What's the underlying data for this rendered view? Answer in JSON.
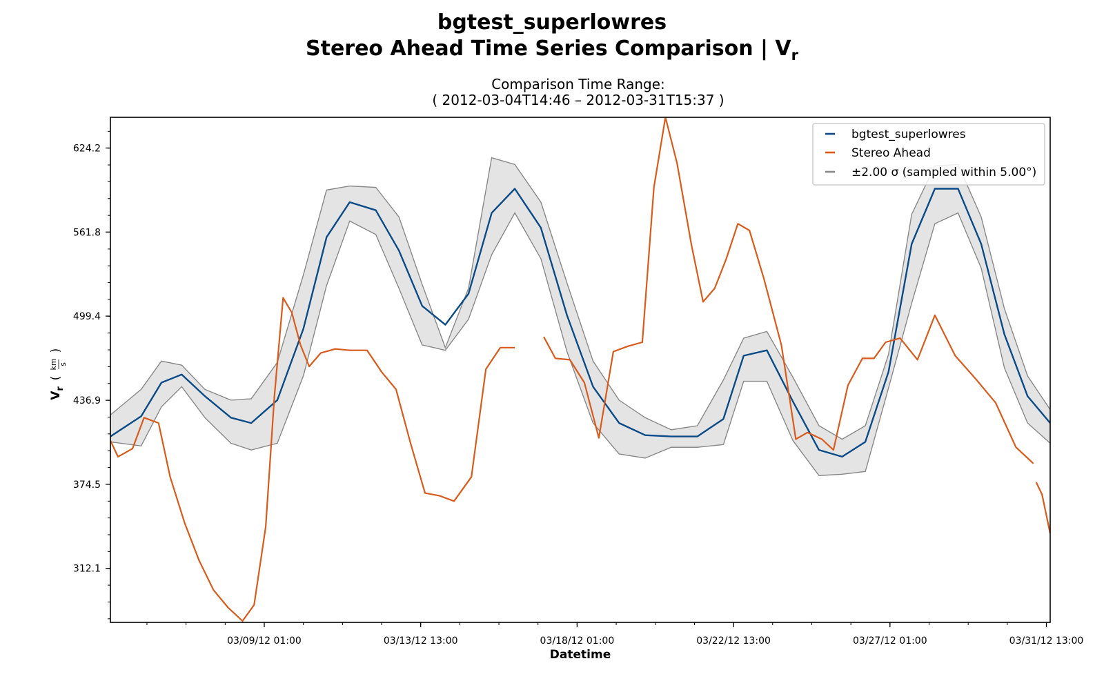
{
  "chart_data": {
    "type": "line",
    "title": "bgtest_superlowres",
    "subtitle_main": "Stereo Ahead Time Series Comparison | V",
    "subtitle_sub": "r",
    "axes_title_line1": "Comparison Time Range:",
    "axes_title_line2": "( 2012-03-04T14:46 – 2012-03-31T15:37 )",
    "xlabel": "Datetime",
    "ylabel_main": "V",
    "ylabel_sub": "r",
    "ylabel_unit_num": "km",
    "ylabel_unit_den": "s",
    "xlim": [
      "2012-03-04T14:46",
      "2012-03-31T15:37"
    ],
    "ylim": [
      272,
      647
    ],
    "x_ticks": [
      "03/09/12 01:00",
      "03/13/12 13:00",
      "03/18/12 01:00",
      "03/22/12 13:00",
      "03/27/12 01:00",
      "03/31/12 13:00"
    ],
    "x_tick_values": [
      "2012-03-09T01:00",
      "2012-03-13T13:00",
      "2012-03-18T01:00",
      "2012-03-22T13:00",
      "2012-03-27T01:00",
      "2012-03-31T13:00"
    ],
    "y_ticks": [
      "624.2",
      "561.8",
      "499.4",
      "436.9",
      "374.5",
      "312.1"
    ],
    "y_tick_values": [
      624.2,
      561.8,
      499.4,
      436.9,
      374.5,
      312.1
    ],
    "legend_placement": "upper right",
    "grid": false,
    "colors": {
      "model": "#0a4a86",
      "observed": "#d95a1a",
      "band_fill": "#e4e4e4",
      "band_edge": "#888888"
    },
    "series": [
      {
        "name": "bgtest_superlowres",
        "x": [
          "2012-03-04T14:46",
          "2012-03-05T12:00",
          "2012-03-06T02:00",
          "2012-03-06T16:00",
          "2012-03-07T08:00",
          "2012-03-08T02:00",
          "2012-03-08T16:00",
          "2012-03-09T10:00",
          "2012-03-10T04:00",
          "2012-03-10T20:00",
          "2012-03-11T12:00",
          "2012-03-12T06:00",
          "2012-03-12T22:00",
          "2012-03-13T14:00",
          "2012-03-14T06:00",
          "2012-03-14T22:00",
          "2012-03-15T14:00",
          "2012-03-16T06:00",
          "2012-03-17T00:00",
          "2012-03-17T18:00",
          "2012-03-18T12:00",
          "2012-03-19T06:00",
          "2012-03-20T00:00",
          "2012-03-20T18:00",
          "2012-03-21T12:00",
          "2012-03-22T06:00",
          "2012-03-22T20:00",
          "2012-03-23T12:00",
          "2012-03-24T06:00",
          "2012-03-25T00:00",
          "2012-03-25T16:00",
          "2012-03-26T08:00",
          "2012-03-27T00:00",
          "2012-03-27T16:00",
          "2012-03-28T08:00",
          "2012-03-29T00:00",
          "2012-03-29T16:00",
          "2012-03-30T08:00",
          "2012-03-31T00:00",
          "2012-03-31T15:37"
        ],
        "values": [
          410,
          425,
          450,
          456,
          440,
          424,
          420,
          437,
          490,
          558,
          584,
          578,
          548,
          507,
          493,
          516,
          576,
          594,
          565,
          500,
          447,
          420,
          411,
          410,
          410,
          423,
          470,
          474,
          436,
          400,
          395,
          406,
          458,
          553,
          594,
          594,
          553,
          486,
          440,
          420
        ]
      },
      {
        "name": "±2.00 σ (sampled within 5.00°)",
        "type": "band",
        "x": [
          "2012-03-04T14:46",
          "2012-03-05T12:00",
          "2012-03-06T02:00",
          "2012-03-06T16:00",
          "2012-03-07T08:00",
          "2012-03-08T02:00",
          "2012-03-08T16:00",
          "2012-03-09T10:00",
          "2012-03-10T04:00",
          "2012-03-10T20:00",
          "2012-03-11T12:00",
          "2012-03-12T06:00",
          "2012-03-12T22:00",
          "2012-03-13T14:00",
          "2012-03-14T06:00",
          "2012-03-14T22:00",
          "2012-03-15T14:00",
          "2012-03-16T06:00",
          "2012-03-17T00:00",
          "2012-03-17T18:00",
          "2012-03-18T12:00",
          "2012-03-19T06:00",
          "2012-03-20T00:00",
          "2012-03-20T18:00",
          "2012-03-21T12:00",
          "2012-03-22T06:00",
          "2012-03-22T20:00",
          "2012-03-23T12:00",
          "2012-03-24T06:00",
          "2012-03-25T00:00",
          "2012-03-25T16:00",
          "2012-03-26T08:00",
          "2012-03-27T00:00",
          "2012-03-27T16:00",
          "2012-03-28T08:00",
          "2012-03-29T00:00",
          "2012-03-29T16:00",
          "2012-03-30T08:00",
          "2012-03-31T00:00",
          "2012-03-31T15:37"
        ],
        "upper": [
          426,
          445,
          466,
          463,
          445,
          437,
          438,
          465,
          530,
          593,
          596,
          595,
          573,
          523,
          476,
          520,
          617,
          612,
          584,
          524,
          466,
          437,
          424,
          415,
          418,
          452,
          483,
          488,
          454,
          418,
          408,
          418,
          471,
          575,
          611,
          612,
          573,
          505,
          455,
          430
        ],
        "lower": [
          406,
          403,
          432,
          447,
          424,
          405,
          400,
          405,
          455,
          522,
          570,
          560,
          520,
          478,
          474,
          497,
          545,
          576,
          542,
          473,
          420,
          397,
          394,
          402,
          402,
          404,
          451,
          451,
          407,
          381,
          382,
          384,
          446,
          509,
          568,
          576,
          535,
          461,
          420,
          405
        ]
      },
      {
        "name": "Stereo Ahead",
        "segments": [
          {
            "x": [
              "2012-03-04T14:46",
              "2012-03-04T20:00",
              "2012-03-05T06:00",
              "2012-03-05T14:00",
              "2012-03-06T00:00",
              "2012-03-06T08:00",
              "2012-03-06T18:00",
              "2012-03-07T04:00",
              "2012-03-07T14:00",
              "2012-03-08T00:00",
              "2012-03-08T10:00",
              "2012-03-08T18:00",
              "2012-03-09T02:00",
              "2012-03-09T08:00",
              "2012-03-09T14:00",
              "2012-03-09T20:00",
              "2012-03-10T02:00",
              "2012-03-10T08:00",
              "2012-03-10T16:00",
              "2012-03-11T02:00",
              "2012-03-11T12:00",
              "2012-03-12T00:00",
              "2012-03-12T10:00",
              "2012-03-12T20:00",
              "2012-03-13T06:00",
              "2012-03-13T16:00",
              "2012-03-14T02:00",
              "2012-03-14T12:00",
              "2012-03-15T00:00",
              "2012-03-15T10:00",
              "2012-03-15T20:00",
              "2012-03-16T06:00"
            ],
            "values": [
              407,
              395,
              401,
              424,
              420,
              380,
              346,
              318,
              296,
              283,
              273,
              285,
              343,
              440,
              513,
              502,
              478,
              462,
              472,
              475,
              474,
              474,
              458,
              445,
              405,
              368,
              366,
              362,
              380,
              460,
              476,
              476
            ]
          },
          {
            "x": [
              "2012-03-17T02:00",
              "2012-03-17T10:00",
              "2012-03-17T20:00",
              "2012-03-18T06:00",
              "2012-03-18T16:00",
              "2012-03-19T02:00",
              "2012-03-19T12:00",
              "2012-03-19T22:00",
              "2012-03-20T06:00",
              "2012-03-20T14:00",
              "2012-03-20T22:00",
              "2012-03-21T08:00",
              "2012-03-21T16:00",
              "2012-03-22T00:00",
              "2012-03-22T08:00",
              "2012-03-22T16:00",
              "2012-03-23T00:00",
              "2012-03-23T10:00",
              "2012-03-23T22:00",
              "2012-03-24T08:00",
              "2012-03-24T16:00",
              "2012-03-25T02:00",
              "2012-03-25T10:00",
              "2012-03-25T20:00",
              "2012-03-26T06:00",
              "2012-03-26T14:00",
              "2012-03-26T22:00",
              "2012-03-27T08:00",
              "2012-03-27T20:00",
              "2012-03-28T08:00",
              "2012-03-28T22:00",
              "2012-03-29T12:00",
              "2012-03-30T02:00",
              "2012-03-30T16:00",
              "2012-03-31T04:00"
            ],
            "values": [
              484,
              468,
              467,
              450,
              409,
              473,
              477,
              480,
              595,
              647,
              613,
              552,
              510,
              520,
              542,
              568,
              563,
              527,
              478,
              408,
              413,
              408,
              400,
              448,
              468,
              468,
              480,
              483,
              467,
              500,
              470,
              453,
              435,
              402,
              390
            ]
          },
          {
            "x": [
              "2012-03-31T06:00",
              "2012-03-31T10:00",
              "2012-03-31T15:37"
            ],
            "values": [
              376,
              367,
              338
            ]
          }
        ]
      }
    ]
  }
}
